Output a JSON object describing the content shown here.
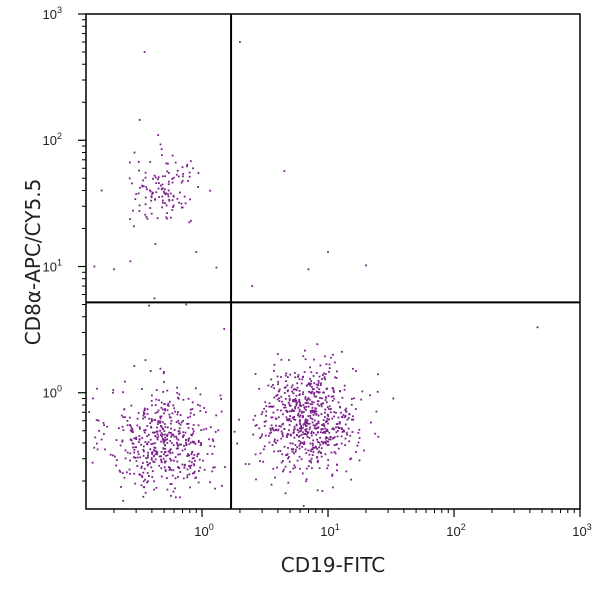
{
  "chart_data": {
    "type": "scatter",
    "title": "",
    "xlabel": "CD19-FITC",
    "ylabel": "CD8α-APC/CY5.5",
    "xscale": "log",
    "yscale": "log",
    "xlim": [
      0.12,
      1000
    ],
    "ylim": [
      0.12,
      1000
    ],
    "xticks": [
      {
        "base": "10",
        "exp": "0"
      },
      {
        "base": "10",
        "exp": "1"
      },
      {
        "base": "10",
        "exp": "2"
      },
      {
        "base": "10",
        "exp": "3"
      }
    ],
    "yticks": [
      {
        "base": "10",
        "exp": "0"
      },
      {
        "base": "10",
        "exp": "1"
      },
      {
        "base": "10",
        "exp": "2"
      },
      {
        "base": "10",
        "exp": "3"
      }
    ],
    "quadrant_gates": {
      "x": 1.7,
      "y": 5.2
    },
    "point_color": "#7b1f8a",
    "populations": [
      {
        "name": "CD19-CD8α- (lower-left)",
        "count": 520,
        "center": [
          0.5,
          0.42
        ],
        "spread_log10": [
          0.22,
          0.21
        ]
      },
      {
        "name": "CD19+CD8α- (lower-right)",
        "count": 690,
        "center": [
          7.0,
          0.62
        ],
        "spread_log10": [
          0.19,
          0.21
        ]
      },
      {
        "name": "CD19-CD8α+ (upper-left)",
        "count": 130,
        "center": [
          0.5,
          40
        ],
        "spread_log10": [
          0.14,
          0.14
        ]
      }
    ],
    "outliers": [
      [
        0.35,
        500
      ],
      [
        2.0,
        600
      ],
      [
        0.32,
        145
      ],
      [
        4.5,
        57
      ],
      [
        10,
        13
      ],
      [
        20,
        10.2
      ],
      [
        7,
        9.5
      ],
      [
        2.5,
        7
      ],
      [
        0.14,
        10
      ],
      [
        0.2,
        9.5
      ],
      [
        0.42,
        5.6
      ],
      [
        460,
        3.3
      ],
      [
        0.38,
        4.9
      ],
      [
        0.75,
        5.0
      ],
      [
        1.3,
        9.8
      ],
      [
        0.27,
        11
      ],
      [
        1.5,
        3.2
      ],
      [
        33,
        0.9
      ],
      [
        25,
        1.4
      ],
      [
        0.9,
        13
      ],
      [
        0.16,
        40
      ],
      [
        0.85,
        60
      ]
    ]
  }
}
